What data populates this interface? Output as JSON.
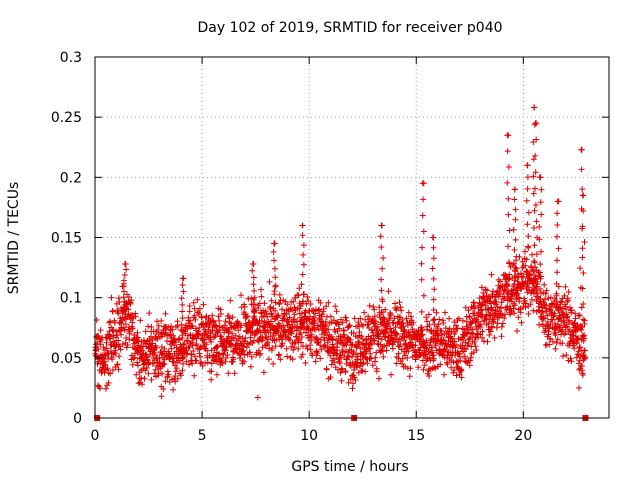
{
  "chart_data": {
    "type": "scatter",
    "title": "Day 102 of 2019, SRMTID for receiver p040",
    "xlabel": "GPS time / hours",
    "ylabel": "SRMTID / TECUs",
    "xlim": [
      0,
      24
    ],
    "ylim": [
      0,
      0.3
    ],
    "xticks": [
      0,
      5,
      10,
      15,
      20
    ],
    "xtick_labels": [
      "0",
      "5",
      "10",
      "15",
      "20"
    ],
    "yticks": [
      0,
      0.05,
      0.1,
      0.15,
      0.2,
      0.25,
      0.3
    ],
    "ytick_labels": [
      "0",
      "0.05",
      "0.1",
      "0.15",
      "0.2",
      "0.25",
      "0.3"
    ],
    "grid": true,
    "marker": "+",
    "color": "#e00000",
    "series": [
      {
        "name": "SRMTID",
        "trend": {
          "x": [
            0,
            0.5,
            1,
            1.5,
            2,
            3,
            4,
            5,
            6,
            7,
            8,
            9,
            10,
            11,
            12,
            13,
            14,
            15,
            16,
            17,
            18,
            19,
            20,
            20.5,
            21,
            22,
            22.5,
            23
          ],
          "y": [
            0.06,
            0.05,
            0.07,
            0.085,
            0.055,
            0.055,
            0.06,
            0.07,
            0.065,
            0.07,
            0.075,
            0.075,
            0.08,
            0.065,
            0.055,
            0.07,
            0.07,
            0.06,
            0.065,
            0.055,
            0.085,
            0.1,
            0.11,
            0.115,
            0.085,
            0.08,
            0.065,
            0.05
          ]
        },
        "spread": 0.028,
        "peaks": [
          {
            "x": 1.4,
            "y": 0.128
          },
          {
            "x": 4.1,
            "y": 0.116
          },
          {
            "x": 7.4,
            "y": 0.128
          },
          {
            "x": 8.4,
            "y": 0.145
          },
          {
            "x": 9.7,
            "y": 0.16
          },
          {
            "x": 13.4,
            "y": 0.16
          },
          {
            "x": 15.3,
            "y": 0.195
          },
          {
            "x": 15.8,
            "y": 0.15
          },
          {
            "x": 19.3,
            "y": 0.235
          },
          {
            "x": 19.6,
            "y": 0.19
          },
          {
            "x": 20.2,
            "y": 0.21
          },
          {
            "x": 20.5,
            "y": 0.258
          },
          {
            "x": 20.6,
            "y": 0.245
          },
          {
            "x": 20.8,
            "y": 0.2
          },
          {
            "x": 21.6,
            "y": 0.18
          },
          {
            "x": 22.7,
            "y": 0.223
          },
          {
            "x": 22.8,
            "y": 0.185
          }
        ],
        "lows": [
          {
            "x": 3.1,
            "y": 0.018
          },
          {
            "x": 7.6,
            "y": 0.017
          },
          {
            "x": 22.6,
            "y": 0.025
          }
        ],
        "zero_points": [
          {
            "x": 0.1,
            "y": 0
          },
          {
            "x": 12.1,
            "y": 0
          },
          {
            "x": 22.9,
            "y": 0
          }
        ]
      }
    ]
  }
}
